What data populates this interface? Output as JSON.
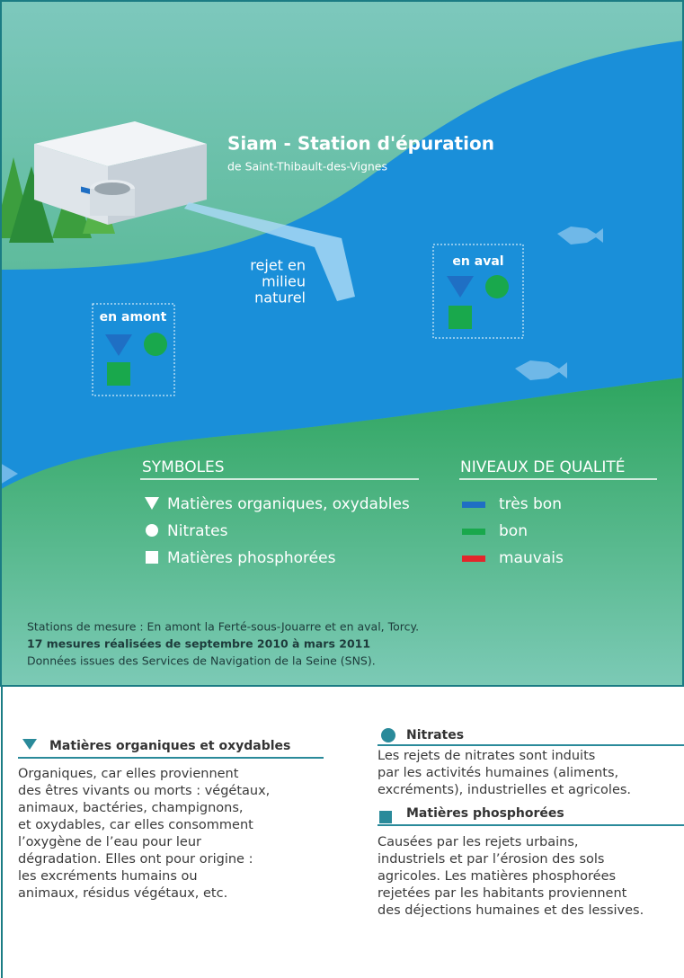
{
  "station": {
    "title": "Siam - Station d'épuration",
    "subtitle": "de Saint-Thibault-des-Vignes"
  },
  "discharge_label": [
    "rejet en",
    "milieu",
    "naturel"
  ],
  "upstream": {
    "label": "en amont"
  },
  "downstream": {
    "label": "en aval"
  },
  "symbols": {
    "title": "SYMBOLES",
    "items": [
      "Matières organiques, oxydables",
      "Nitrates",
      "Matières phosphorées"
    ]
  },
  "quality": {
    "title": "NIVEAUX DE QUALITÉ",
    "levels": [
      {
        "label": "très bon",
        "color": "#1f6fc4"
      },
      {
        "label": "bon",
        "color": "#19a84c"
      },
      {
        "label": "mauvais",
        "color": "#e3262b"
      }
    ]
  },
  "notes": [
    "Stations de mesure : En amont la Ferté-sous-Jouarre et en aval, Torcy.",
    "17 mesures réalisées de septembre 2010 à mars 2011",
    "Données issues des Services de Navigation de la Seine (SNS)."
  ],
  "sections": [
    {
      "title": "Matières organiques et oxydables",
      "text": [
        "Organiques, car elles proviennent",
        "des êtres vivants ou morts : végétaux,",
        "animaux, bactéries, champignons,",
        "et oxydables, car elles consomment",
        "l’oxygène de l’eau pour leur",
        "dégradation. Elles ont pour origine :",
        "les excréments humains ou",
        "animaux, résidus végétaux, etc."
      ]
    },
    {
      "title": "Nitrates",
      "text": [
        "Les rejets de nitrates sont induits",
        "par les activités humaines (aliments,",
        "excréments), industrielles et agricoles."
      ]
    },
    {
      "title": "Matières  phosphorées",
      "text": [
        "Causées par les rejets urbains,",
        "industriels et par l’érosion des sols",
        "agricoles. Les matières phosphorées",
        "rejetées par les habitants proviennent",
        "des déjections humaines et des lessives."
      ]
    }
  ]
}
